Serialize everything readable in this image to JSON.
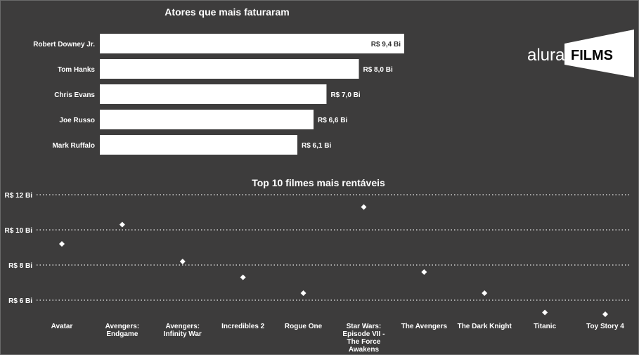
{
  "colors": {
    "background": "#3d3c3c",
    "bar": "#ffffff",
    "marker": "#ffffff",
    "grid": "#cfcfcf"
  },
  "logo": {
    "word": "alura",
    "films": "FILMS"
  },
  "chart_data": [
    {
      "type": "bar",
      "orientation": "horizontal",
      "title": "Atores que mais faturaram",
      "categories": [
        "Robert Downey Jr.",
        "Tom Hanks",
        "Chris Evans",
        "Joe Russo",
        "Mark Ruffalo"
      ],
      "values": [
        9.4,
        8.0,
        7.0,
        6.6,
        6.1
      ],
      "value_labels": [
        "R$ 9,4 Bi",
        "R$ 8,0 Bi",
        "R$ 7,0 Bi",
        "R$ 6,6 Bi",
        "R$ 6,1 Bi"
      ],
      "xlim": [
        0,
        9.4
      ],
      "grid": false
    },
    {
      "type": "scatter",
      "title": "Top 10 filmes mais rentáveis",
      "categories": [
        "Avatar",
        "Avengers: Endgame",
        "Avengers: Infinity War",
        "Incredibles 2",
        "Rogue One",
        "Star Wars: Episode VII - The Force Awakens",
        "The Avengers",
        "The Dark Knight",
        "Titanic",
        "Toy Story 4"
      ],
      "category_labels": [
        [
          "Avatar"
        ],
        [
          "Avengers:",
          "Endgame"
        ],
        [
          "Avengers:",
          "Infinity War"
        ],
        [
          "Incredibles 2"
        ],
        [
          "Rogue One"
        ],
        [
          "Star Wars:",
          "Episode VII -",
          "The Force",
          "Awakens"
        ],
        [
          "The Avengers"
        ],
        [
          "The Dark Knight"
        ],
        [
          "Titanic"
        ],
        [
          "Toy Story 4"
        ]
      ],
      "values": [
        9.2,
        10.3,
        8.2,
        7.3,
        6.4,
        11.3,
        7.6,
        6.4,
        5.3,
        5.2
      ],
      "yticks": [
        6,
        8,
        10,
        12
      ],
      "ytick_labels": [
        "R$ 6 Bi",
        "R$ 8 Bi",
        "R$ 10 Bi",
        "R$ 12 Bi"
      ],
      "ylim": [
        5.2,
        12
      ],
      "grid": true
    }
  ]
}
